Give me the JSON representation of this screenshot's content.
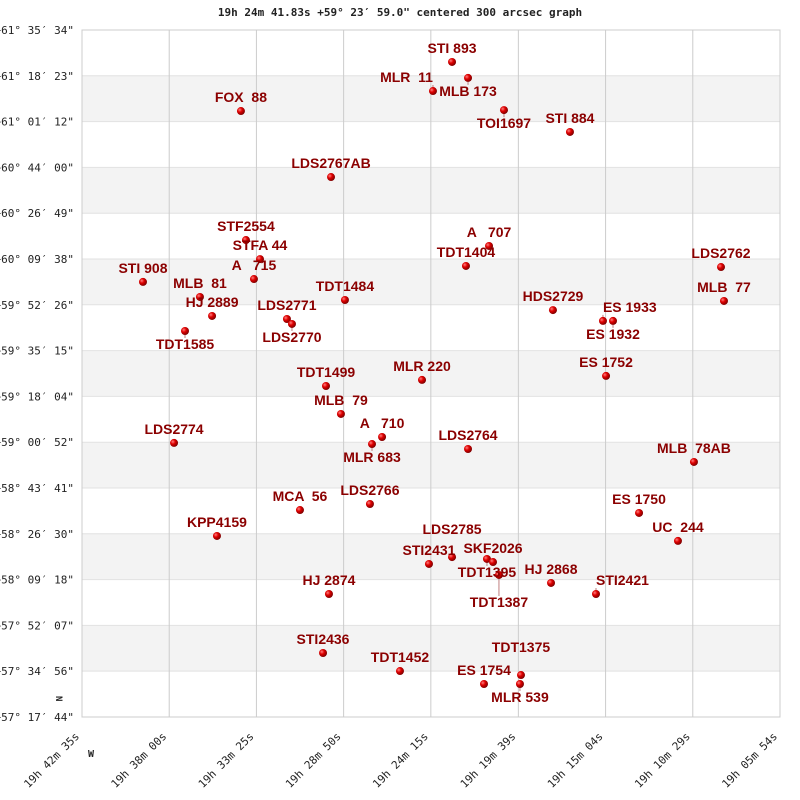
{
  "chart_data": {
    "type": "scatter",
    "title": "19h 24m 41.83s +59° 23′ 59.0\" centered 300 arcsec graph",
    "xlim": [
      19.70972,
      19.09833
    ],
    "ylim": [
      57.2956,
      61.5928
    ],
    "x_ticks": [
      {
        "value": 19.70972,
        "label": "19h 42m 35s"
      },
      {
        "value": 19.63333,
        "label": "19h 38m 00s"
      },
      {
        "value": 19.55694,
        "label": "19h 33m 25s"
      },
      {
        "value": 19.48056,
        "label": "19h 28m 50s"
      },
      {
        "value": 19.40417,
        "label": "19h 24m 15s"
      },
      {
        "value": 19.3275,
        "label": "19h 19m 39s"
      },
      {
        "value": 19.25111,
        "label": "19h 15m 04s"
      },
      {
        "value": 19.17472,
        "label": "19h 10m 29s"
      },
      {
        "value": 19.09833,
        "label": "19h 05m 54s"
      }
    ],
    "y_ticks": [
      {
        "value": 61.5928,
        "label": "+61° 35′ 34\""
      },
      {
        "value": 61.3064,
        "label": "+61° 18′ 23\""
      },
      {
        "value": 61.02,
        "label": "+61° 01′ 12\""
      },
      {
        "value": 60.7333,
        "label": "+60° 44′ 00\""
      },
      {
        "value": 60.4469,
        "label": "+60° 26′ 49\""
      },
      {
        "value": 60.1606,
        "label": "+60° 09′ 38\""
      },
      {
        "value": 59.8739,
        "label": "+59° 52′ 26\""
      },
      {
        "value": 59.5875,
        "label": "+59° 35′ 15\""
      },
      {
        "value": 59.3011,
        "label": "+59° 18′ 04\""
      },
      {
        "value": 59.0144,
        "label": "+59° 00′ 52\""
      },
      {
        "value": 58.7281,
        "label": "+58° 43′ 41\""
      },
      {
        "value": 58.4417,
        "label": "+58° 26′ 30\""
      },
      {
        "value": 58.155,
        "label": "+58° 09′ 18\""
      },
      {
        "value": 57.8686,
        "label": "+57° 52′ 07\""
      },
      {
        "value": 57.5822,
        "label": "+57° 34′ 56\""
      },
      {
        "value": 57.2956,
        "label": "+57° 17′ 44\""
      }
    ],
    "compass": {
      "north": "N",
      "west": "W"
    },
    "grid": true,
    "colors": {
      "point": "#e00000",
      "label": "#8b0000",
      "band": "#f3f3f3",
      "grid": "#cccccc"
    },
    "points": [
      {
        "name": "FOX  88",
        "ra": 19.5705,
        "dec": 61.086
      },
      {
        "name": "STI 893",
        "ra": 19.3856,
        "dec": 61.393
      },
      {
        "name": "MLB 173",
        "ra": 19.3716,
        "dec": 61.293
      },
      {
        "name": "MLR  11",
        "ra": 19.4023,
        "dec": 61.211
      },
      {
        "name": "TOI1697",
        "ra": 19.3401,
        "dec": 61.092
      },
      {
        "name": "STI 884",
        "ra": 19.2823,
        "dec": 60.955
      },
      {
        "name": "LDS2767AB",
        "ra": 19.4916,
        "dec": 60.673
      },
      {
        "name": "STF2554",
        "ra": 19.5661,
        "dec": 60.279
      },
      {
        "name": "STFA 44",
        "ra": 19.5538,
        "dec": 60.16
      },
      {
        "name": "A   715",
        "ra": 19.5591,
        "dec": 60.035
      },
      {
        "name": "STI 908",
        "ra": 19.6563,
        "dec": 60.017
      },
      {
        "name": "MLB  81",
        "ra": 19.6064,
        "dec": 59.923
      },
      {
        "name": "HJ 2889",
        "ra": 19.5958,
        "dec": 59.804
      },
      {
        "name": "TDT1585",
        "ra": 19.6195,
        "dec": 59.71
      },
      {
        "name": "LDS2771",
        "ra": 19.5302,
        "dec": 59.785
      },
      {
        "name": "LDS2770",
        "ra": 19.5258,
        "dec": 59.754
      },
      {
        "name": "TDT1484",
        "ra": 19.4794,
        "dec": 59.904
      },
      {
        "name": "A   707",
        "ra": 19.3532,
        "dec": 60.242
      },
      {
        "name": "TDT1404",
        "ra": 19.3734,
        "dec": 60.117
      },
      {
        "name": "LDS2762",
        "ra": 19.15,
        "dec": 60.11
      },
      {
        "name": "MLB  77",
        "ra": 19.1474,
        "dec": 59.898
      },
      {
        "name": "HDS2729",
        "ra": 19.2972,
        "dec": 59.841
      },
      {
        "name": "ES 1933",
        "ra": 19.2534,
        "dec": 59.773
      },
      {
        "name": "ES 1932",
        "ra": 19.2446,
        "dec": 59.773
      },
      {
        "name": "ES 1752",
        "ra": 19.2507,
        "dec": 59.429
      },
      {
        "name": "MLR 220",
        "ra": 19.4119,
        "dec": 59.404
      },
      {
        "name": "TDT1499",
        "ra": 19.496,
        "dec": 59.366
      },
      {
        "name": "MLB  79",
        "ra": 19.4829,
        "dec": 59.191
      },
      {
        "name": "A   710",
        "ra": 19.4469,
        "dec": 59.047
      },
      {
        "name": "MLR 683",
        "ra": 19.4557,
        "dec": 59.003
      },
      {
        "name": "LDS2764",
        "ra": 19.3716,
        "dec": 58.972
      },
      {
        "name": "LDS2774",
        "ra": 19.6291,
        "dec": 59.01
      },
      {
        "name": "MLB  78AB",
        "ra": 19.1737,
        "dec": 58.891
      },
      {
        "name": "MCA  56",
        "ra": 19.5188,
        "dec": 58.59
      },
      {
        "name": "LDS2766",
        "ra": 19.4575,
        "dec": 58.628
      },
      {
        "name": "KPP4159",
        "ra": 19.5915,
        "dec": 58.428
      },
      {
        "name": "ES 1750",
        "ra": 19.2218,
        "dec": 58.572
      },
      {
        "name": "UC  244",
        "ra": 19.1877,
        "dec": 58.397
      },
      {
        "name": "STI2431",
        "ra": 19.4058,
        "dec": 58.253
      },
      {
        "name": "LDS2785",
        "ra": 19.3856,
        "dec": 58.296
      },
      {
        "name": "TDT1395",
        "ra": 19.355,
        "dec": 58.284
      },
      {
        "name": "SKF2026",
        "ra": 19.3497,
        "dec": 58.265
      },
      {
        "name": "TDT1387",
        "ra": 19.3445,
        "dec": 58.184
      },
      {
        "name": "HJ 2868",
        "ra": 19.2989,
        "dec": 58.134
      },
      {
        "name": "STI2421",
        "ra": 19.2595,
        "dec": 58.065
      },
      {
        "name": "HJ 2874",
        "ra": 19.4934,
        "dec": 58.065
      },
      {
        "name": "STI2436",
        "ra": 19.4986,
        "dec": 57.696
      },
      {
        "name": "TDT1452",
        "ra": 19.4312,
        "dec": 57.583
      },
      {
        "name": "ES 1754",
        "ra": 19.3576,
        "dec": 57.502
      },
      {
        "name": "TDT1375",
        "ra": 19.3252,
        "dec": 57.558
      },
      {
        "name": "MLR 539",
        "ra": 19.3261,
        "dec": 57.502
      }
    ]
  }
}
